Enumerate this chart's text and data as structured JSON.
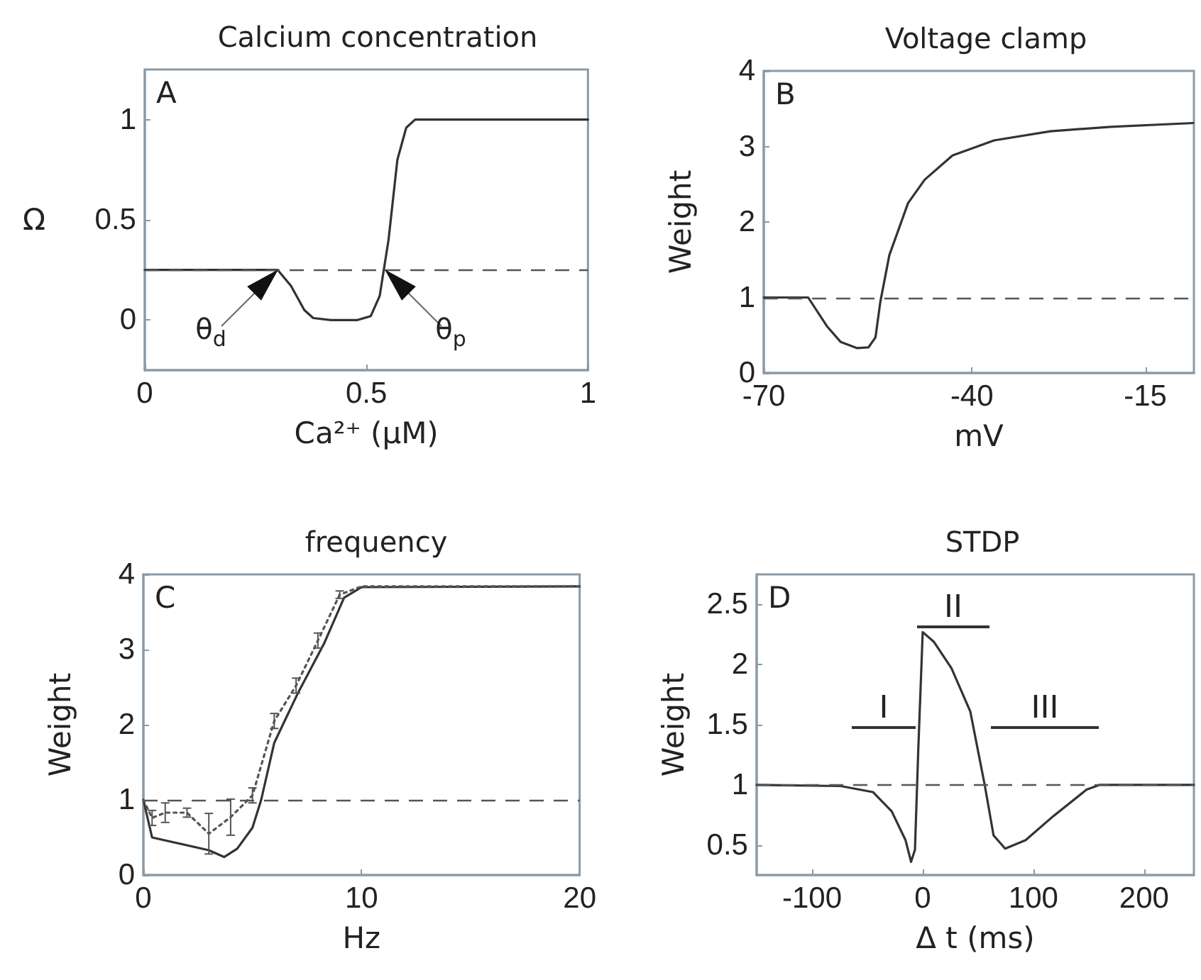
{
  "chart_data": [
    {
      "type": "line",
      "title": "Calcium concentration",
      "xlabel": "Ca²⁺ (μM)",
      "ylabel": "Ω",
      "xlim": [
        0,
        1
      ],
      "ylim": [
        -0.25,
        1.25
      ],
      "xticks": [
        0,
        0.5,
        1
      ],
      "yticks": [
        0,
        0.5,
        1
      ],
      "marker": "none",
      "series": [
        {
          "color": "#333333",
          "line_style": "solid",
          "x": [
            0,
            0.3,
            0.33,
            0.36,
            0.38,
            0.42,
            0.48,
            0.51,
            0.53,
            0.55,
            0.57,
            0.59,
            0.61,
            0.65,
            1
          ],
          "values": [
            0.25,
            0.25,
            0.17,
            0.05,
            0.01,
            0,
            0,
            0.02,
            0.12,
            0.4,
            0.8,
            0.96,
            1,
            1,
            1
          ]
        }
      ],
      "ref_lines": [
        {
          "axis": "y",
          "value": 0.25,
          "line_style": "dashed",
          "color": "#555555"
        }
      ],
      "annotations": [
        "A",
        {
          "text": "θ$_{d}$",
          "x": 0.3,
          "y": 0.25
        },
        {
          "text": "θ$_{p}$",
          "x": 0.54,
          "y": 0.25
        }
      ]
    },
    {
      "type": "line",
      "title": "Voltage clamp",
      "xlabel": "mV",
      "ylabel": "Weight",
      "xlim": [
        -70,
        -8
      ],
      "ylim": [
        0,
        4
      ],
      "xticks": [
        -70,
        -40,
        -15
      ],
      "yticks": [
        0,
        1,
        2,
        3,
        4
      ],
      "marker": "none",
      "series": [
        {
          "color": "#333333",
          "line_style": "solid",
          "x": [
            -70,
            -63.6,
            -60.9,
            -58.9,
            -56.6,
            -54.9,
            -53.9,
            -53.2,
            -51.9,
            -49.2,
            -46.8,
            -42.8,
            -36.8,
            -28.7,
            -20,
            -8.1
          ],
          "values": [
            1,
            1,
            0.62,
            0.41,
            0.33,
            0.34,
            0.47,
            0.94,
            1.56,
            2.25,
            2.56,
            2.88,
            3.08,
            3.2,
            3.26,
            3.31
          ]
        }
      ],
      "ref_lines": [
        {
          "axis": "y",
          "value": 1,
          "line_style": "dashed",
          "color": "#555555"
        }
      ],
      "annotations": [
        "B"
      ]
    },
    {
      "type": "line",
      "title": "frequency",
      "xlabel": "Hz",
      "ylabel": "Weight",
      "xlim": [
        0,
        20
      ],
      "ylim": [
        0,
        4
      ],
      "xticks": [
        0,
        10,
        20
      ],
      "yticks": [
        0,
        1,
        2,
        3,
        4
      ],
      "marker": "none",
      "series": [
        {
          "color": "#333333",
          "line_style": "solid",
          "x": [
            0,
            0.4,
            3,
            3.7,
            4.3,
            5,
            5.4,
            6,
            7.1,
            8.3,
            9.2,
            10,
            20
          ],
          "values": [
            1,
            0.5,
            0.33,
            0.24,
            0.35,
            0.63,
            1,
            1.76,
            2.43,
            3.09,
            3.69,
            3.83,
            3.84
          ]
        },
        {
          "color": "#555555",
          "line_style": "dotted",
          "x": [
            0,
            0.4,
            1,
            2,
            3,
            4,
            5,
            6,
            7,
            8,
            9,
            10,
            14,
            16,
            18,
            20
          ],
          "values": [
            1,
            0.76,
            0.83,
            0.83,
            0.55,
            0.77,
            1.06,
            2.05,
            2.52,
            3.12,
            3.73,
            3.84,
            3.84,
            3.84,
            3.84,
            3.84
          ],
          "errors": [
            null,
            0.1,
            0.13,
            0.06,
            0.27,
            0.24,
            0.1,
            0.1,
            0.1,
            0.1,
            0.05,
            null,
            null,
            null,
            null,
            null
          ]
        }
      ],
      "ref_lines": [
        {
          "axis": "y",
          "value": 1,
          "line_style": "dashed",
          "color": "#555555"
        }
      ],
      "annotations": [
        "C"
      ]
    },
    {
      "type": "line",
      "title": "STDP",
      "xlabel": "Δ t (ms)",
      "ylabel": "Weight",
      "xlim": [
        -150,
        245
      ],
      "ylim": [
        0.25,
        2.75
      ],
      "xticks": [
        -100,
        0,
        100,
        200
      ],
      "yticks": [
        0.5,
        1,
        1.5,
        2,
        2.5
      ],
      "marker": "none",
      "series": [
        {
          "color": "#333333",
          "line_style": "solid",
          "x": [
            -150,
            -74,
            -45,
            -28,
            -15.5,
            -10.5,
            -7,
            -4,
            0,
            10,
            26,
            43,
            56,
            64,
            74.5,
            93,
            118,
            148,
            160,
            245
          ],
          "values": [
            1,
            0.99,
            0.94,
            0.78,
            0.54,
            0.36,
            0.46,
            1.29,
            2.27,
            2.19,
            1.97,
            1.61,
            1,
            0.58,
            0.47,
            0.54,
            0.74,
            0.96,
            1,
            1
          ]
        }
      ],
      "ref_lines": [
        {
          "axis": "y",
          "value": 1,
          "line_style": "dashed",
          "color": "#555555"
        }
      ],
      "annotations": [
        "D",
        "I",
        "II",
        "III"
      ]
    }
  ]
}
